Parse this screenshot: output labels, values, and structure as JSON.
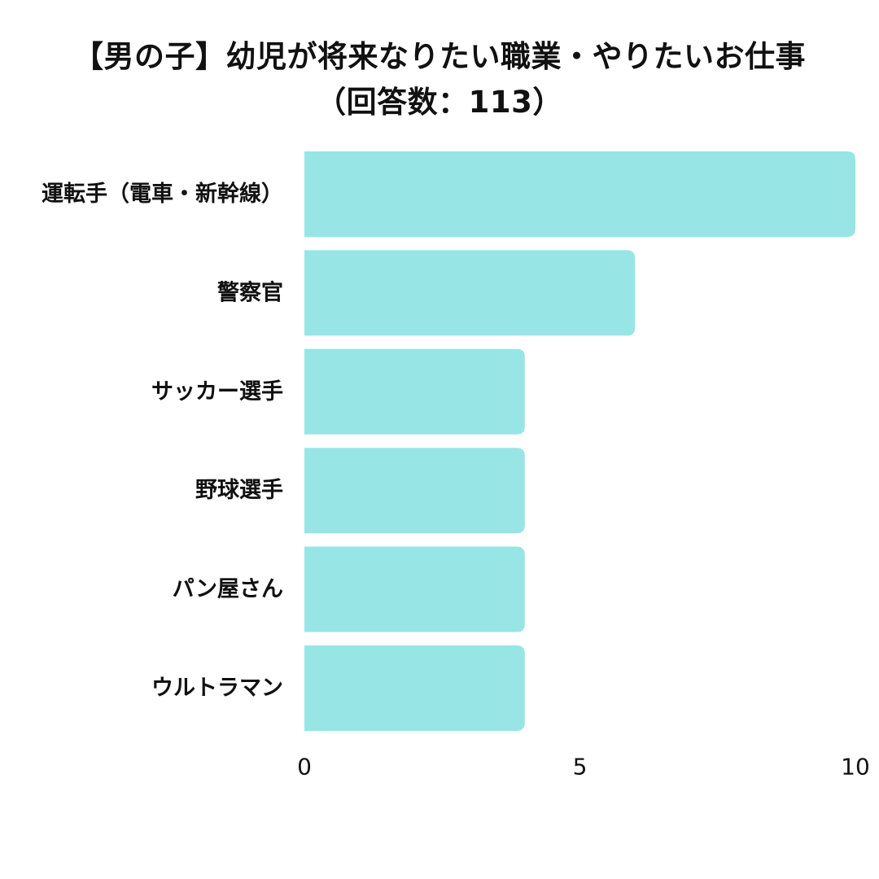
{
  "chart_data": {
    "type": "bar",
    "orientation": "horizontal",
    "title": "【男の子】幼児が将来なりたい職業・やりたいお仕事",
    "subtitle": "（回答数：113）",
    "categories": [
      "運転手（電車・新幹線）",
      "警察官",
      "サッカー選手",
      "野球選手",
      "パン屋さん",
      "ウルトラマン"
    ],
    "values": [
      10,
      6,
      4,
      4,
      4,
      4
    ],
    "xlim": [
      0,
      10
    ],
    "xticks": [
      "0",
      "5",
      "10"
    ],
    "xlabel": "",
    "ylabel": "",
    "grid": false,
    "legend": "none",
    "bar_color": "#98e5e5"
  }
}
